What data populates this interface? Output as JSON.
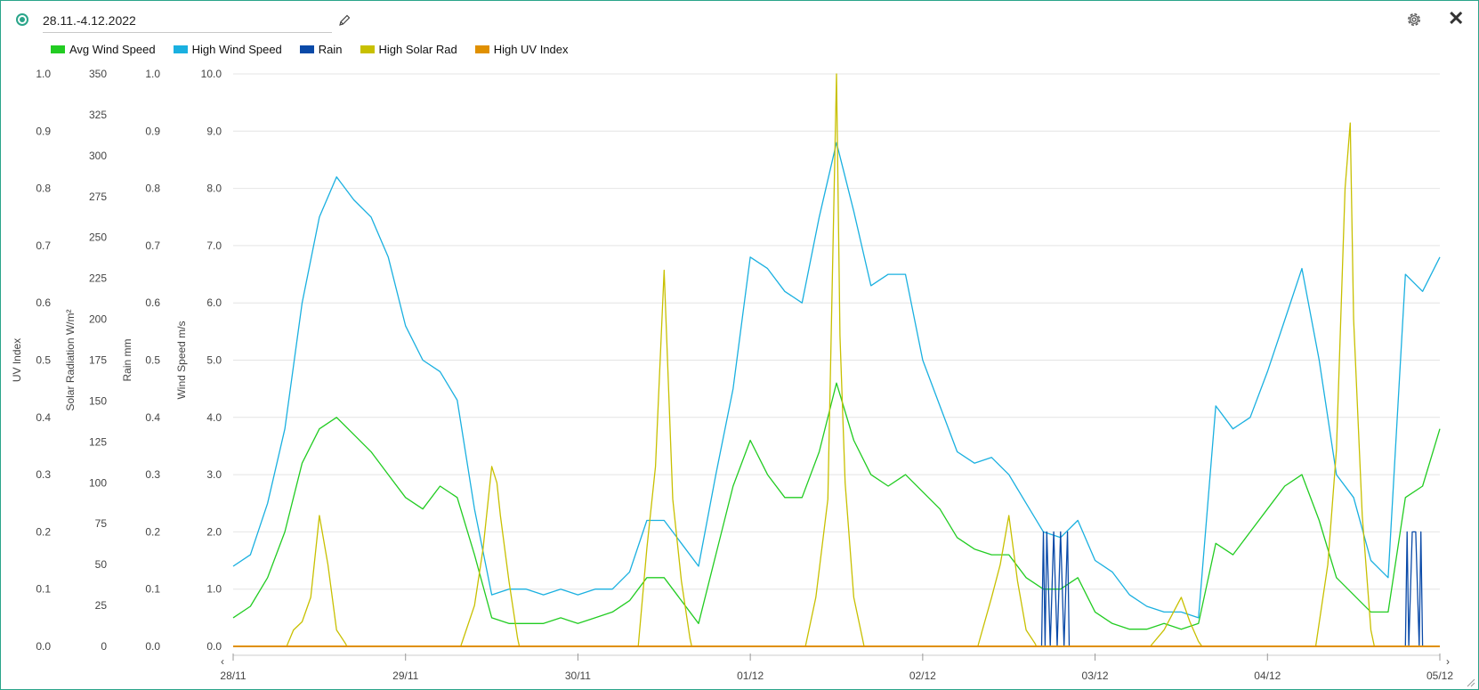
{
  "header": {
    "title": "28.11.-4.12.2022"
  },
  "icons": {
    "record": "radio-selected-icon",
    "edit": "pencil-icon",
    "settings": "gear-icon",
    "close": "close-icon"
  },
  "close_glyph": "✕",
  "nav": {
    "prev_glyph": "‹",
    "next_glyph": "›"
  },
  "legend": [
    {
      "name": "Avg Wind Speed",
      "color": "#22cc22"
    },
    {
      "name": "High Wind Speed",
      "color": "#1ab0e0"
    },
    {
      "name": "Rain",
      "color": "#0a4aa8"
    },
    {
      "name": "High Solar Rad",
      "color": "#c8c000"
    },
    {
      "name": "High UV Index",
      "color": "#e09000"
    }
  ],
  "chart_data": {
    "type": "line",
    "x_start": "28/11",
    "x_end": "05/12",
    "x_ticks": [
      "28/11",
      "29/11",
      "30/11",
      "01/12",
      "02/12",
      "03/12",
      "04/12",
      "05/12"
    ],
    "grid": true,
    "legend_position": "top-left",
    "y_axes": [
      {
        "label": "UV Index",
        "range": [
          0,
          1.0
        ],
        "ticks": [
          "0.0",
          "0.1",
          "0.2",
          "0.3",
          "0.4",
          "0.5",
          "0.6",
          "0.7",
          "0.8",
          "0.9",
          "1.0"
        ]
      },
      {
        "label": "Solar Radiation W/m²",
        "range": [
          0,
          350
        ],
        "ticks": [
          "0",
          "25",
          "50",
          "75",
          "100",
          "125",
          "150",
          "175",
          "200",
          "225",
          "250",
          "275",
          "300",
          "325",
          "350"
        ]
      },
      {
        "label": "Rain mm",
        "range": [
          0,
          1.0
        ],
        "ticks": [
          "0.0",
          "0.1",
          "0.2",
          "0.3",
          "0.4",
          "0.5",
          "0.6",
          "0.7",
          "0.8",
          "0.9",
          "1.0"
        ]
      },
      {
        "label": "Wind Speed m/s",
        "range": [
          0,
          10.0
        ],
        "ticks": [
          "0.0",
          "1.0",
          "2.0",
          "3.0",
          "4.0",
          "5.0",
          "6.0",
          "7.0",
          "8.0",
          "9.0",
          "10.0"
        ]
      }
    ],
    "series": [
      {
        "name": "High Wind Speed",
        "axis": "Wind Speed m/s",
        "color": "#1ab0e0",
        "x_days": [
          0,
          0.1,
          0.2,
          0.3,
          0.4,
          0.5,
          0.6,
          0.7,
          0.8,
          0.9,
          1.0,
          1.1,
          1.2,
          1.3,
          1.4,
          1.5,
          1.6,
          1.7,
          1.8,
          1.9,
          2.0,
          2.1,
          2.2,
          2.3,
          2.4,
          2.5,
          2.6,
          2.7,
          2.8,
          2.9,
          3.0,
          3.1,
          3.2,
          3.3,
          3.4,
          3.5,
          3.6,
          3.7,
          3.8,
          3.9,
          4.0,
          4.1,
          4.2,
          4.3,
          4.4,
          4.5,
          4.6,
          4.7,
          4.8,
          4.9,
          5.0,
          5.1,
          5.2,
          5.3,
          5.4,
          5.5,
          5.6,
          5.7,
          5.8,
          5.9,
          6.0,
          6.1,
          6.2,
          6.3,
          6.4,
          6.5,
          6.6,
          6.7,
          6.8,
          6.9,
          7.0
        ],
        "values": [
          1.4,
          1.6,
          2.5,
          3.8,
          6.0,
          7.5,
          8.2,
          7.8,
          7.5,
          6.8,
          5.6,
          5.0,
          4.8,
          4.3,
          2.4,
          0.9,
          1.0,
          1.0,
          0.9,
          1.0,
          0.9,
          1.0,
          1.0,
          1.3,
          2.2,
          2.2,
          1.8,
          1.4,
          3.0,
          4.5,
          6.8,
          6.6,
          6.2,
          6.0,
          7.5,
          8.8,
          7.6,
          6.3,
          6.5,
          6.5,
          5.0,
          4.2,
          3.4,
          3.2,
          3.3,
          3.0,
          2.5,
          2.0,
          1.9,
          2.2,
          1.5,
          1.3,
          0.9,
          0.7,
          0.6,
          0.6,
          0.5,
          4.2,
          3.8,
          4.0,
          4.8,
          5.7,
          6.6,
          5.0,
          3.0,
          2.6,
          1.5,
          1.2,
          6.5,
          6.2,
          6.8
        ]
      },
      {
        "name": "Avg Wind Speed",
        "axis": "Wind Speed m/s",
        "color": "#22cc22",
        "x_days": [
          0,
          0.1,
          0.2,
          0.3,
          0.4,
          0.5,
          0.6,
          0.7,
          0.8,
          0.9,
          1.0,
          1.1,
          1.2,
          1.3,
          1.4,
          1.5,
          1.6,
          1.7,
          1.8,
          1.9,
          2.0,
          2.1,
          2.2,
          2.3,
          2.4,
          2.5,
          2.6,
          2.7,
          2.8,
          2.9,
          3.0,
          3.1,
          3.2,
          3.3,
          3.4,
          3.5,
          3.6,
          3.7,
          3.8,
          3.9,
          4.0,
          4.1,
          4.2,
          4.3,
          4.4,
          4.5,
          4.6,
          4.7,
          4.8,
          4.9,
          5.0,
          5.1,
          5.2,
          5.3,
          5.4,
          5.5,
          5.6,
          5.7,
          5.8,
          5.9,
          6.0,
          6.1,
          6.2,
          6.3,
          6.4,
          6.5,
          6.6,
          6.7,
          6.8,
          6.9,
          7.0
        ],
        "values": [
          0.5,
          0.7,
          1.2,
          2.0,
          3.2,
          3.8,
          4.0,
          3.7,
          3.4,
          3.0,
          2.6,
          2.4,
          2.8,
          2.6,
          1.6,
          0.5,
          0.4,
          0.4,
          0.4,
          0.5,
          0.4,
          0.5,
          0.6,
          0.8,
          1.2,
          1.2,
          0.8,
          0.4,
          1.6,
          2.8,
          3.6,
          3.0,
          2.6,
          2.6,
          3.4,
          4.6,
          3.6,
          3.0,
          2.8,
          3.0,
          2.7,
          2.4,
          1.9,
          1.7,
          1.6,
          1.6,
          1.2,
          1.0,
          1.0,
          1.2,
          0.6,
          0.4,
          0.3,
          0.3,
          0.4,
          0.3,
          0.4,
          1.8,
          1.6,
          2.0,
          2.4,
          2.8,
          3.0,
          2.2,
          1.2,
          0.9,
          0.6,
          0.6,
          2.6,
          2.8,
          3.8
        ]
      },
      {
        "name": "High Solar Rad",
        "axis": "Solar Radiation W/m²",
        "color": "#c8c000",
        "x_days": [
          0,
          0.31,
          0.35,
          0.4,
          0.45,
          0.5,
          0.55,
          0.6,
          0.65,
          0.66,
          1.32,
          1.4,
          1.45,
          1.5,
          1.53,
          1.55,
          1.6,
          1.65,
          1.66,
          2.35,
          2.4,
          2.45,
          2.5,
          2.55,
          2.6,
          2.65,
          2.66,
          3.32,
          3.38,
          3.45,
          3.5,
          3.52,
          3.55,
          3.6,
          3.65,
          3.66,
          4.32,
          4.4,
          4.45,
          4.5,
          4.55,
          4.6,
          4.65,
          4.66,
          5.32,
          5.4,
          5.45,
          5.5,
          5.55,
          5.6,
          5.62,
          6.28,
          6.35,
          6.4,
          6.45,
          6.48,
          6.5,
          6.55,
          6.6,
          6.62,
          7.0
        ],
        "values": [
          0,
          0,
          10,
          15,
          30,
          80,
          50,
          10,
          2,
          0,
          0,
          25,
          60,
          110,
          100,
          80,
          40,
          5,
          0,
          0,
          60,
          110,
          230,
          90,
          40,
          5,
          0,
          0,
          30,
          90,
          350,
          190,
          100,
          30,
          5,
          0,
          0,
          30,
          50,
          80,
          40,
          10,
          2,
          0,
          0,
          10,
          20,
          30,
          15,
          3,
          0,
          0,
          50,
          120,
          280,
          320,
          200,
          80,
          10,
          0,
          0
        ]
      },
      {
        "name": "Rain",
        "axis": "Rain mm",
        "color": "#0a4aa8",
        "x_days": [
          0,
          4.69,
          4.7,
          4.71,
          4.72,
          4.74,
          4.76,
          4.78,
          4.8,
          4.82,
          4.84,
          4.85,
          4.86,
          6.8,
          6.81,
          6.82,
          6.84,
          6.86,
          6.88,
          6.89,
          6.9,
          7.0
        ],
        "values": [
          0,
          0,
          0.2,
          0,
          0.2,
          0,
          0.2,
          0,
          0.2,
          0,
          0.2,
          0,
          0,
          0,
          0.2,
          0,
          0.2,
          0.2,
          0,
          0.2,
          0,
          0
        ]
      },
      {
        "name": "High UV Index",
        "axis": "UV Index",
        "color": "#e09000",
        "x_days": [
          0,
          7.0
        ],
        "values": [
          0,
          0
        ]
      }
    ]
  }
}
